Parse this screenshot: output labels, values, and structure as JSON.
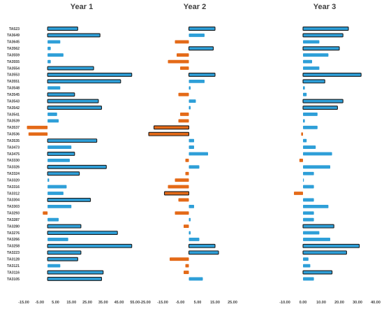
{
  "chart_data": {
    "type": "bar",
    "orientation": "horizontal",
    "categories": [
      "TA523",
      "TA3649",
      "TA3645",
      "TA3562",
      "TA3559",
      "TA3555",
      "TA3554",
      "TA3553",
      "TA3551",
      "TA3548",
      "TA3545",
      "TA3543",
      "TA3542",
      "TA3541",
      "TA3539",
      "TA3537",
      "TA3536",
      "TA3535",
      "TA3473",
      "TA3475",
      "TA3330",
      "TA3326",
      "TA3324",
      "TA3320",
      "TA3316",
      "TA3312",
      "TA3304",
      "TA3303",
      "TA3293",
      "TA3287",
      "TA3280",
      "TA3276",
      "TA3266",
      "TA3258",
      "TA3223",
      "TA3128",
      "TA3121",
      "TA3116",
      "TA3105"
    ],
    "colors": {
      "positive": "#2e9fd8",
      "negative": "#e46a18",
      "highlight_outline": "#1a1a1a"
    },
    "panels": [
      {
        "title": "Year 1",
        "xlim": [
          -15,
          65
        ],
        "ticks": [
          -15,
          -5,
          5,
          15,
          25,
          35,
          45,
          55
        ],
        "tick_labels": [
          "-15.00",
          "-5.00",
          "5.00",
          "15.00",
          "25.00",
          "35.00",
          "45.00",
          "55.00"
        ],
        "values": [
          19,
          33,
          8,
          2,
          10,
          2,
          29,
          53,
          46,
          8,
          17,
          32,
          34,
          6,
          7,
          -13,
          -12,
          31,
          15,
          17,
          14,
          37,
          20,
          1,
          12,
          10,
          27,
          15,
          -3,
          7,
          21,
          44,
          13,
          53,
          21,
          19,
          8,
          35,
          34
        ],
        "highlighted": [
          0,
          1,
          6,
          7,
          8,
          10,
          11,
          12,
          17,
          19,
          21,
          22,
          26,
          30,
          31,
          33,
          34,
          35,
          37,
          38
        ]
      },
      {
        "title": "Year 2",
        "xlim": [
          -25,
          35
        ],
        "ticks": [
          -25,
          -15,
          -5,
          5,
          15,
          25
        ],
        "tick_labels": [
          "-25.00",
          "-15.00",
          "-5.00",
          "5.00",
          "15.00",
          "25.00"
        ],
        "values": [
          15,
          9,
          -8,
          14,
          -7,
          -12,
          -5,
          15,
          9,
          1,
          -6,
          4,
          1,
          -5,
          -6,
          -20,
          -23,
          3,
          3,
          11,
          -2,
          6,
          -2,
          -8,
          -12,
          -14,
          -6,
          3,
          -8,
          1,
          -3,
          1,
          6,
          15,
          17,
          -11,
          -2,
          -3,
          8
        ],
        "highlighted": [
          0,
          3,
          7,
          15,
          16,
          25,
          33,
          34
        ]
      },
      {
        "title": "Year 3",
        "xlim": [
          -10,
          40
        ],
        "ticks": [
          -10,
          0,
          10,
          20,
          30,
          40
        ],
        "tick_labels": [
          "-10.00",
          "0.00",
          "10.00",
          "20.00",
          "30.00",
          "40.00"
        ],
        "values": [
          25,
          22,
          9,
          20,
          14,
          5,
          9,
          32,
          12,
          1,
          2,
          22,
          19,
          8,
          1,
          8,
          -1,
          2,
          7,
          16,
          -2,
          15,
          6,
          0,
          6,
          -5,
          6,
          14,
          6,
          6,
          17,
          9,
          15,
          31,
          24,
          3,
          4,
          16,
          6
        ],
        "highlighted": [
          0,
          1,
          3,
          7,
          8,
          11,
          12,
          30,
          33,
          34,
          37
        ]
      }
    ]
  }
}
